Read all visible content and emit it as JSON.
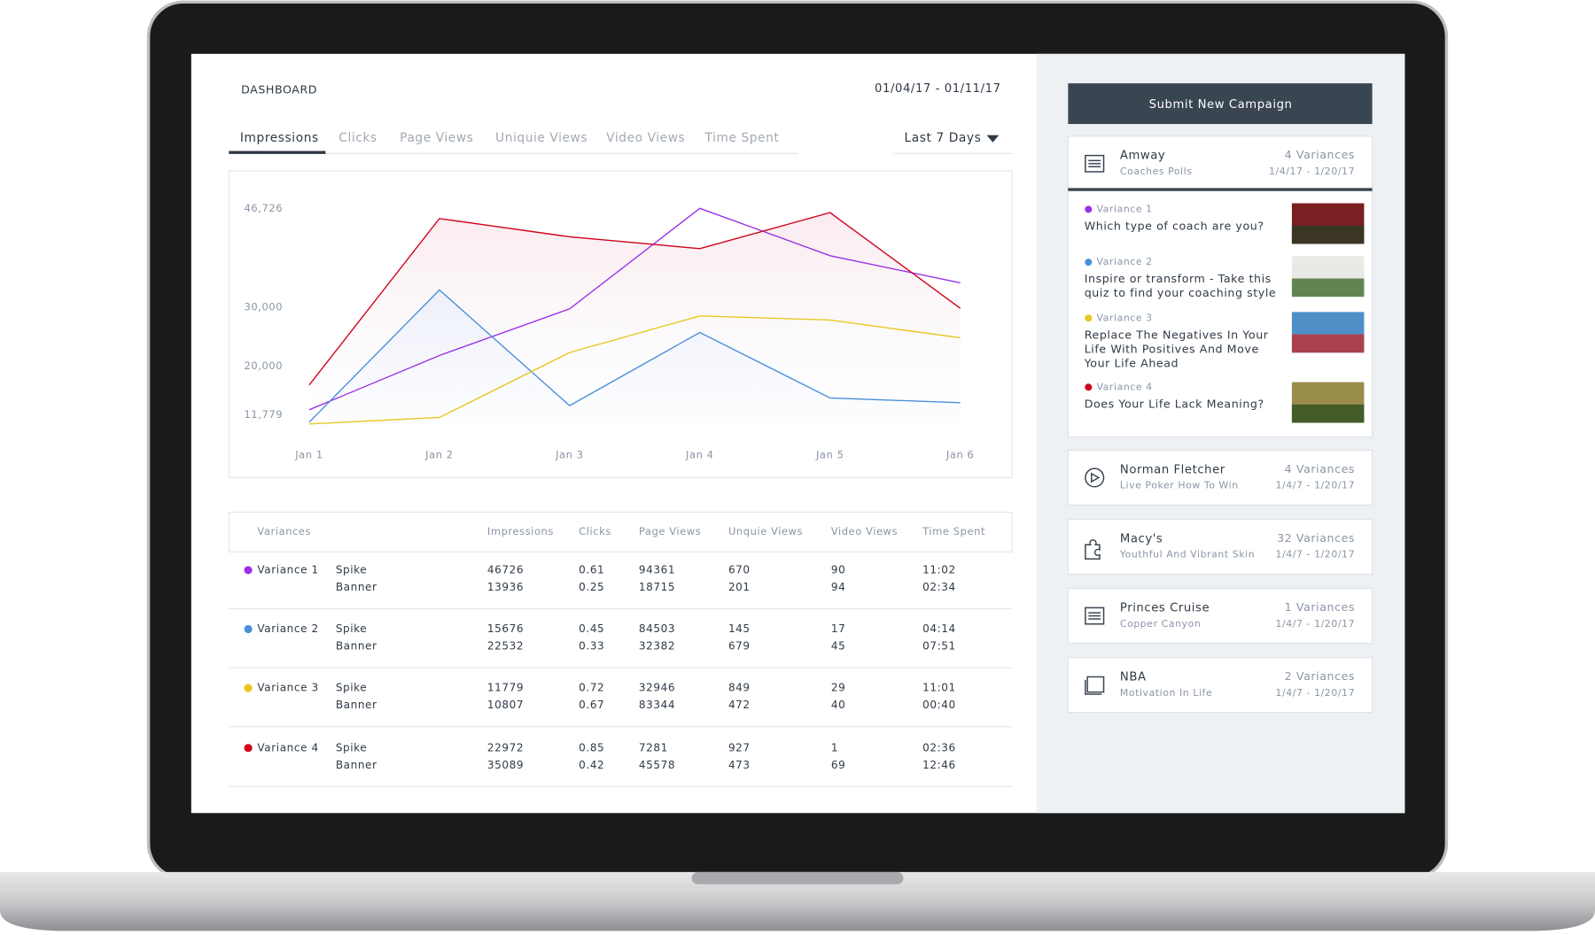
{
  "header": {
    "title": "DASHBOARD",
    "date_range": "01/04/17 - 01/11/17"
  },
  "tabs": [
    "Impressions",
    "Clicks",
    "Page Views",
    "Uniquie Views",
    "Video Views",
    "Time Spent"
  ],
  "period": "Last 7 Days",
  "chart_data": {
    "type": "line",
    "categories": [
      "Jan 1",
      "Jan 2",
      "Jan 3",
      "Jan 4",
      "Jan 5",
      "Jan 6"
    ],
    "series": [
      {
        "color": "#9b30e8",
        "values": [
          12600,
          21800,
          29700,
          46726,
          38700,
          34100
        ]
      },
      {
        "color": "#4a90d9",
        "values": [
          10500,
          32900,
          13300,
          25700,
          14600,
          13800
        ]
      },
      {
        "color": "#e8c81e",
        "values": [
          10200,
          11300,
          22300,
          28500,
          27800,
          24800
        ]
      },
      {
        "color": "#d0021b",
        "values": [
          16800,
          45000,
          41900,
          39900,
          46000,
          29800
        ]
      }
    ],
    "ylim": [
      10000,
      47000
    ],
    "yticks": [
      {
        "value": 11779,
        "label": "11,779"
      },
      {
        "value": 20000,
        "label": "20,000"
      },
      {
        "value": 30000,
        "label": "30,000"
      },
      {
        "value": 46726,
        "label": "46,726"
      }
    ]
  },
  "table": {
    "columns": [
      "Variances",
      "Impressions",
      "Clicks",
      "Page Views",
      "Unquie Views",
      "Video Views",
      "Time Spent"
    ],
    "rows": [
      {
        "variance": "Variance 1",
        "lines": [
          [
            "Spike",
            46726,
            0.61,
            94361,
            670,
            90,
            "11:02"
          ],
          [
            "Banner",
            13936,
            0.25,
            18715,
            201,
            94,
            "02:34"
          ]
        ]
      },
      {
        "variance": "Variance 2",
        "lines": [
          [
            "Spike",
            15676,
            0.45,
            84503,
            145,
            17,
            "04:14"
          ],
          [
            "Banner",
            22532,
            0.33,
            32382,
            679,
            45,
            "07:51"
          ]
        ]
      },
      {
        "variance": "Variance 3",
        "lines": [
          [
            "Spike",
            11779,
            0.72,
            32946,
            849,
            29,
            "11:01"
          ],
          [
            "Banner",
            10807,
            0.67,
            83344,
            472,
            40,
            "00:40"
          ]
        ]
      },
      {
        "variance": "Variance 4",
        "lines": [
          [
            "Spike",
            22972,
            0.85,
            7281,
            927,
            1,
            "02:36"
          ],
          [
            "Banner",
            35089,
            0.42,
            45578,
            473,
            69,
            "12:46"
          ]
        ]
      }
    ]
  },
  "sidebar": {
    "button": "Submit New Campaign",
    "campaigns": [
      {
        "name": "Amway",
        "subtitle": "Coaches Polls",
        "variances": "4 Variances",
        "dates": "1/4/17 - 1/20/17",
        "items": [
          {
            "label": "Variance 1",
            "text": [
              "Which type of coach are you?"
            ]
          },
          {
            "label": "Variance 2",
            "text": [
              "Inspire or transform - Take this",
              "quiz to find your coaching style"
            ]
          },
          {
            "label": "Variance 3",
            "text": [
              "Replace The Negatives In Your",
              "Life With Positives And Move",
              "Your Life Ahead"
            ]
          },
          {
            "label": "Variance 4",
            "text": [
              "Does Your Life Lack Meaning?"
            ]
          }
        ]
      },
      {
        "name": "Norman Fletcher",
        "subtitle": "Live Poker How To Win",
        "variances": "4 Variances",
        "dates": "1/4/7 - 1/20/17"
      },
      {
        "name": "Macy's",
        "subtitle": "Youthful And Vibrant Skin",
        "variances": "32 Variances",
        "dates": "1/4/7 - 1/20/17"
      },
      {
        "name": "Princes Cruise",
        "subtitle": "Copper Canyon",
        "variances": "1 Variances",
        "dates": "1/4/7 - 1/20/17"
      },
      {
        "name": "NBA",
        "subtitle": "Motivation In Life",
        "variances": "2 Variances",
        "dates": "1/4/7 - 1/20/17"
      }
    ]
  }
}
